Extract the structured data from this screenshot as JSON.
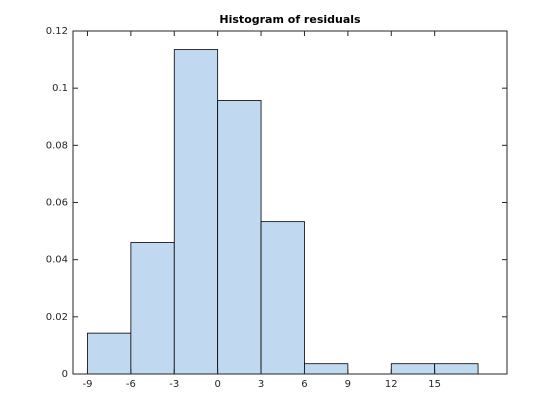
{
  "chart_data": {
    "type": "histogram",
    "title": "Histogram of residuals",
    "bins": [
      -9,
      -6,
      -3,
      0,
      3,
      6,
      9,
      12,
      15,
      18
    ],
    "values": [
      0.0143,
      0.046,
      0.1135,
      0.0957,
      0.0533,
      0.0036,
      0,
      0.0036,
      0.0036
    ],
    "color": "#c0d9f0",
    "edge_color": "#000000",
    "xlim": [
      -10,
      20
    ],
    "xticks": [
      -9,
      -6,
      -3,
      0,
      3,
      6,
      9,
      12,
      15
    ],
    "ylim": [
      0,
      0.12
    ],
    "yticks": [
      0,
      0.02,
      0.04,
      0.06,
      0.08,
      0.1,
      0.12
    ],
    "grid": false
  }
}
